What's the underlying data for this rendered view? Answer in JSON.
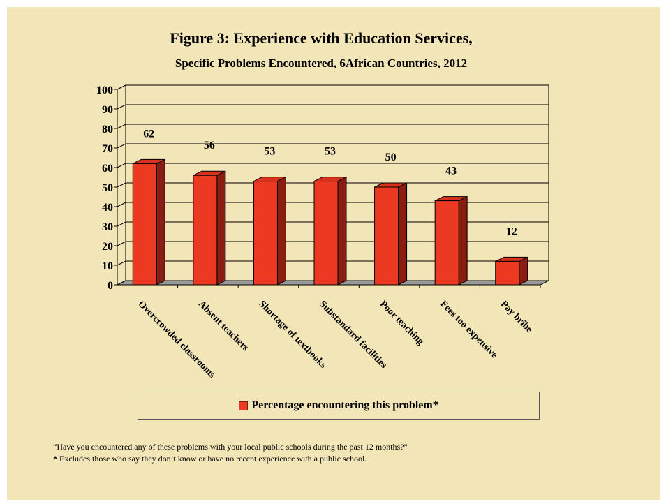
{
  "title": "Figure 3:  Experience with Education Services,",
  "subtitle": "Specific Problems Encountered, 6African Countries, 2012",
  "legend": "Percentage  encountering this problem*",
  "footnote_question": "“Have you encountered any of these problems with your local public schools during the past 12 months?”",
  "footnote_star": "*",
  "footnote_text": " Excludes those who say they don’t know or have no recent experience with a public school.",
  "colors": {
    "background": "#f2e6b8",
    "bar_front": "#ec3a22",
    "bar_side": "#8a1d12",
    "bar_top": "#d8321c",
    "floor": "#999999"
  },
  "chart_data": {
    "type": "bar",
    "categories": [
      "Overcrowded classrooms",
      "Absent teachers",
      "Shortage of textbooks",
      "Substandard facilities",
      "Poor teaching",
      "Fees too expensive",
      "Pay bribe"
    ],
    "series": [
      {
        "name": "Percentage  encountering this problem*",
        "values": [
          62,
          56,
          53,
          53,
          50,
          43,
          12
        ]
      }
    ],
    "ylim": [
      0,
      100
    ],
    "yticks": [
      0,
      10,
      20,
      30,
      40,
      50,
      60,
      70,
      80,
      90,
      100
    ],
    "grid": true,
    "legend_position": "bottom",
    "style": "3d"
  }
}
